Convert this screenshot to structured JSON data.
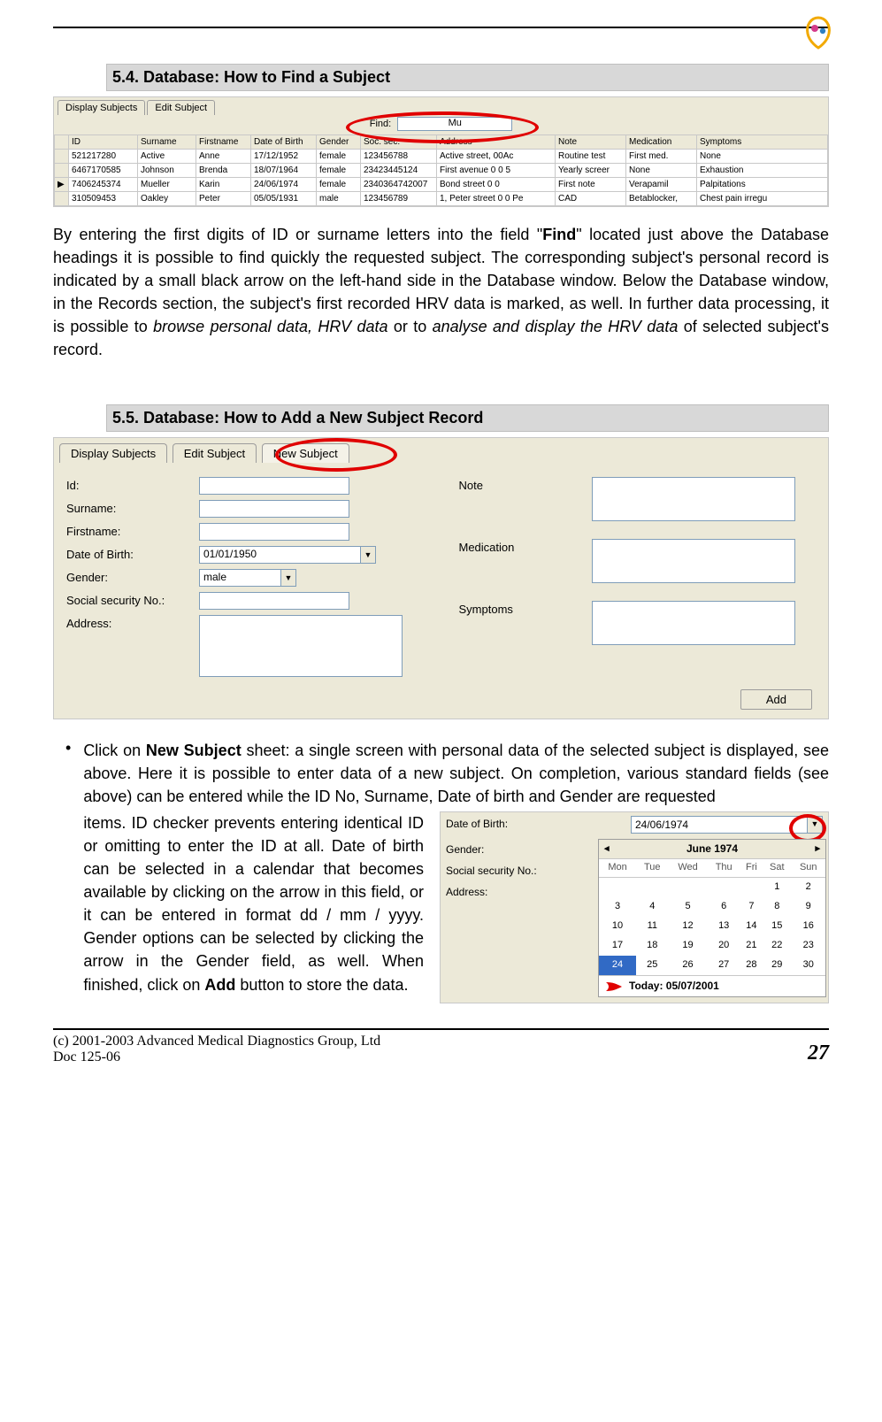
{
  "sections": {
    "s54": "5.4. Database: How to Find a Subject",
    "s55": "5.5. Database: How to Add a New Subject Record"
  },
  "dbShot": {
    "tabs": [
      "Display Subjects",
      "Edit Subject"
    ],
    "find_label": "Find:",
    "find_value": "Mu",
    "columns": [
      "",
      "ID",
      "Surname",
      "Firstname",
      "Date of Birth",
      "Gender",
      "Soc. sec.",
      "Address",
      "Note",
      "Medication",
      "Symptoms"
    ],
    "rows": [
      {
        "mark": "",
        "id": "521217280",
        "surname": "Active",
        "first": "Anne",
        "dob": "17/12/1952",
        "gender": "female",
        "ssn": "123456788",
        "addr": "Active street, 00Ac",
        "note": "Routine test",
        "med": "First med.",
        "sym": "None"
      },
      {
        "mark": "",
        "id": "6467170585",
        "surname": "Johnson",
        "first": "Brenda",
        "dob": "18/07/1964",
        "gender": "female",
        "ssn": "23423445124",
        "addr": "First avenue 0 0 5",
        "note": "Yearly screer",
        "med": "None",
        "sym": "Exhaustion"
      },
      {
        "mark": "▶",
        "id": "7406245374",
        "surname": "Mueller",
        "first": "Karin",
        "dob": "24/06/1974",
        "gender": "female",
        "ssn": "2340364742007",
        "addr": "Bond street 0 0",
        "note": "First note",
        "med": "Verapamil",
        "sym": "Palpitations"
      },
      {
        "mark": "",
        "id": "310509453",
        "surname": "Oakley",
        "first": "Peter",
        "dob": "05/05/1931",
        "gender": "male",
        "ssn": "123456789",
        "addr": "1, Peter street 0 0 Pe",
        "note": "CAD",
        "med": "Betablocker,",
        "sym": "Chest pain irregu"
      }
    ]
  },
  "paragraph1": "By entering the first digits of ID or surname letters into the field \"",
  "paragraph1_bold": "Find",
  "paragraph1_after": "\" located just above the Database headings it is possible to find quickly the requested subject. The corresponding subject's personal record is indicated by a small black arrow on the left-hand side in the Database window. Below the Database window, in the Records section, the subject's first recorded HRV data is marked, as well. In further data processing, it is possible to ",
  "paragraph1_it1": "browse personal data, HRV data",
  "paragraph1_mid": " or to ",
  "paragraph1_it2": "analyse and display the HRV data",
  "paragraph1_end": " of selected subject's record.",
  "formShot": {
    "tabs": [
      "Display Subjects",
      "Edit Subject",
      "New Subject"
    ],
    "labels": {
      "id": "Id:",
      "surname": "Surname:",
      "first": "Firstname:",
      "dob": "Date of Birth:",
      "gender": "Gender:",
      "ssn": "Social security No.:",
      "addr": "Address:",
      "note": "Note",
      "med": "Medication",
      "sym": "Symptoms"
    },
    "dob_value": "01/01/1950",
    "gender_value": "male",
    "add_label": "Add"
  },
  "bullet": {
    "lead": "Click on ",
    "bold1": "New Subject",
    "t1": " sheet: a single screen with personal data of the selected subject is displayed, see above. Here it is possible to enter data of a new subject. On completion, various standard fields (see above) can be entered while the ID No, Surname, Date of birth and Gender are requested",
    "left": "items. ID checker prevents entering identical ID or omitting to enter the ID at all. Date of birth can be selected in a calendar that becomes available by clicking on the arrow in this field, or it can be entered in format  dd / mm / yyyy. Gender options can be selected by clicking the arrow in the Gender field, as well. When finished, click on ",
    "bold2": "Add",
    "left_end": " button to store the data."
  },
  "calShot": {
    "dob_label": "Date of Birth:",
    "gender_label": "Gender:",
    "ssn_label": "Social security No.:",
    "addr_label": "Address:",
    "dob_value": "24/06/1974",
    "month": "June 1974",
    "dows": [
      "Mon",
      "Tue",
      "Wed",
      "Thu",
      "Fri",
      "Sat",
      "Sun"
    ],
    "weeks": [
      [
        "",
        "",
        "",
        "",
        "",
        "1",
        "2"
      ],
      [
        "3",
        "4",
        "5",
        "6",
        "7",
        "8",
        "9"
      ],
      [
        "10",
        "11",
        "12",
        "13",
        "14",
        "15",
        "16"
      ],
      [
        "17",
        "18",
        "19",
        "20",
        "21",
        "22",
        "23"
      ],
      [
        "24",
        "25",
        "26",
        "27",
        "28",
        "29",
        "30"
      ]
    ],
    "selected": "24",
    "today": "Today: 05/07/2001"
  },
  "footer": {
    "copyright": "(c) 2001-2003 Advanced Medical Diagnostics Group, Ltd",
    "doc": "Doc 125-06",
    "page": "27"
  },
  "colors": {
    "heading_bg": "#d8d8d8",
    "win_bg": "#ece9d8",
    "red": "#e00000",
    "border": "#c8c8c8"
  }
}
